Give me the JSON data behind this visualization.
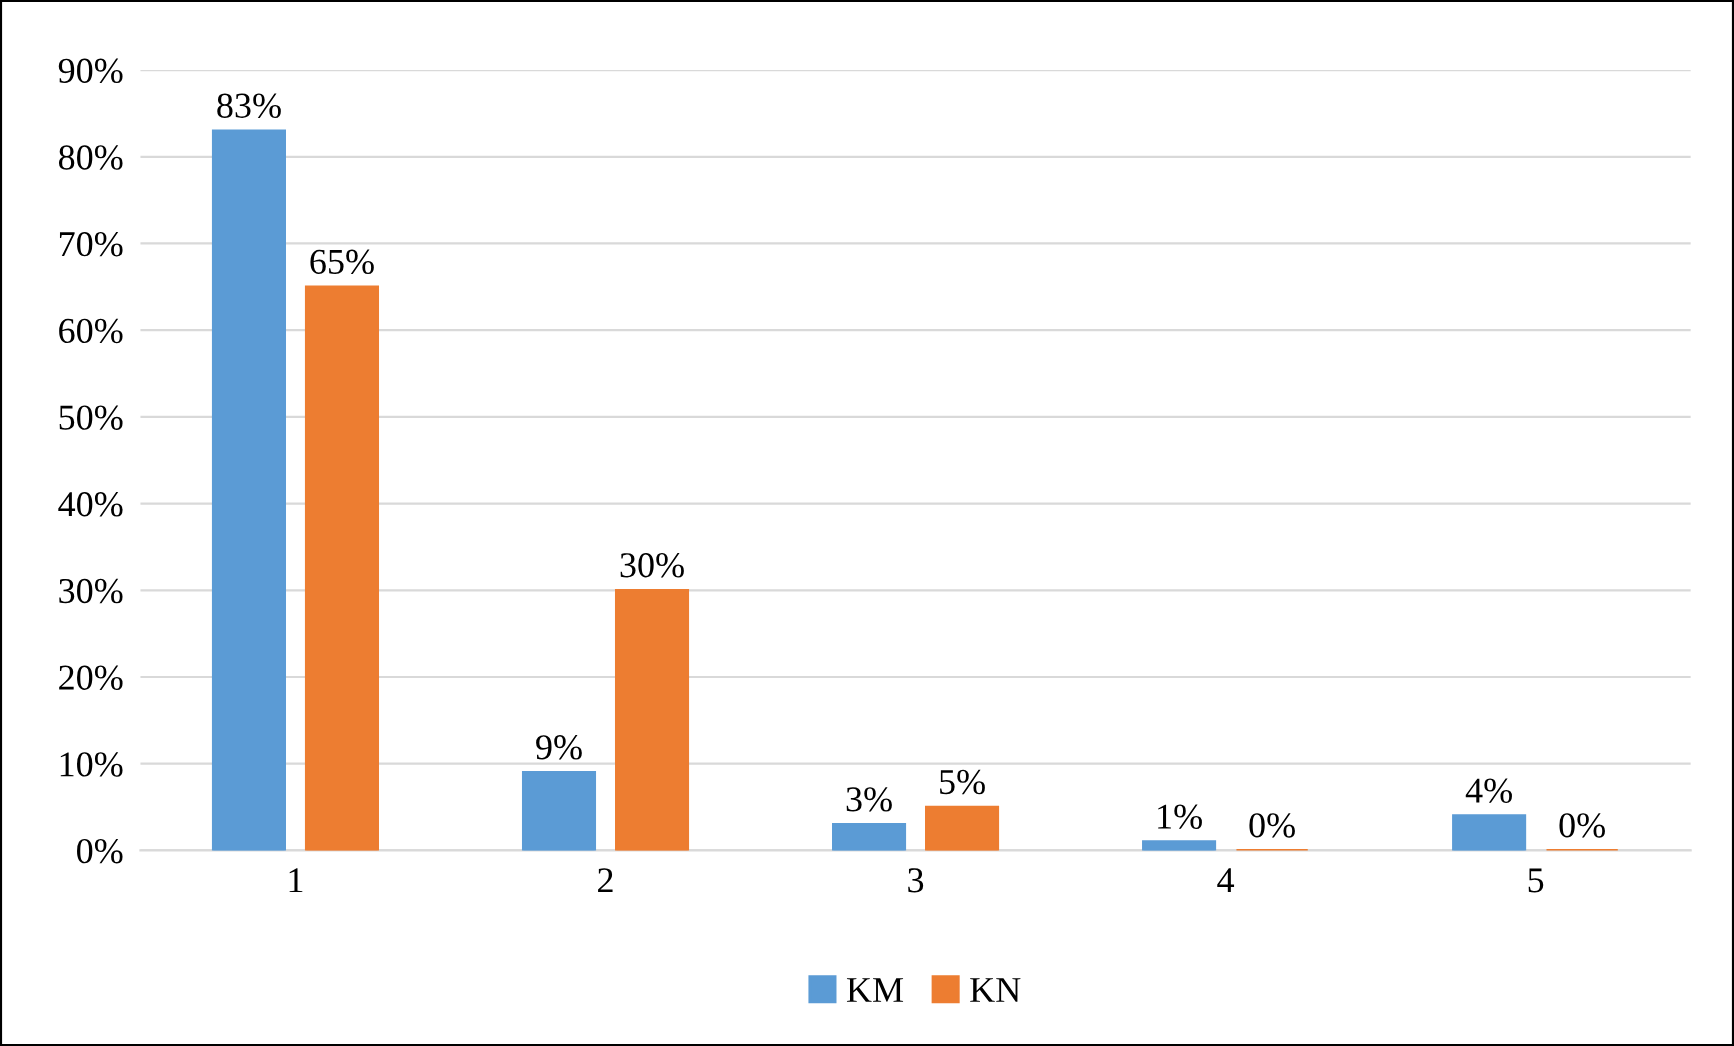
{
  "chart_data": {
    "type": "bar",
    "categories": [
      "1",
      "2",
      "3",
      "4",
      "5"
    ],
    "series": [
      {
        "name": "KM",
        "color": "#5b9bd5",
        "values": [
          83,
          9,
          3,
          1,
          4
        ],
        "value_labels": [
          "83%",
          "9%",
          "3%",
          "1%",
          "4%"
        ]
      },
      {
        "name": "KN",
        "color": "#ed7d31",
        "values": [
          65,
          30,
          5,
          0,
          0
        ],
        "value_labels": [
          "65%",
          "30%",
          "5%",
          "0%",
          "0%"
        ]
      }
    ],
    "ylim": [
      0,
      90
    ],
    "yticks": [
      {
        "value": 0,
        "label": "0%"
      },
      {
        "value": 10,
        "label": "10%"
      },
      {
        "value": 20,
        "label": "20%"
      },
      {
        "value": 30,
        "label": "30%"
      },
      {
        "value": 40,
        "label": "40%"
      },
      {
        "value": 50,
        "label": "50%"
      },
      {
        "value": 60,
        "label": "60%"
      },
      {
        "value": 70,
        "label": "70%"
      },
      {
        "value": 80,
        "label": "80%"
      },
      {
        "value": 90,
        "label": "90%"
      }
    ],
    "grid": "y",
    "legend": "bottom"
  }
}
